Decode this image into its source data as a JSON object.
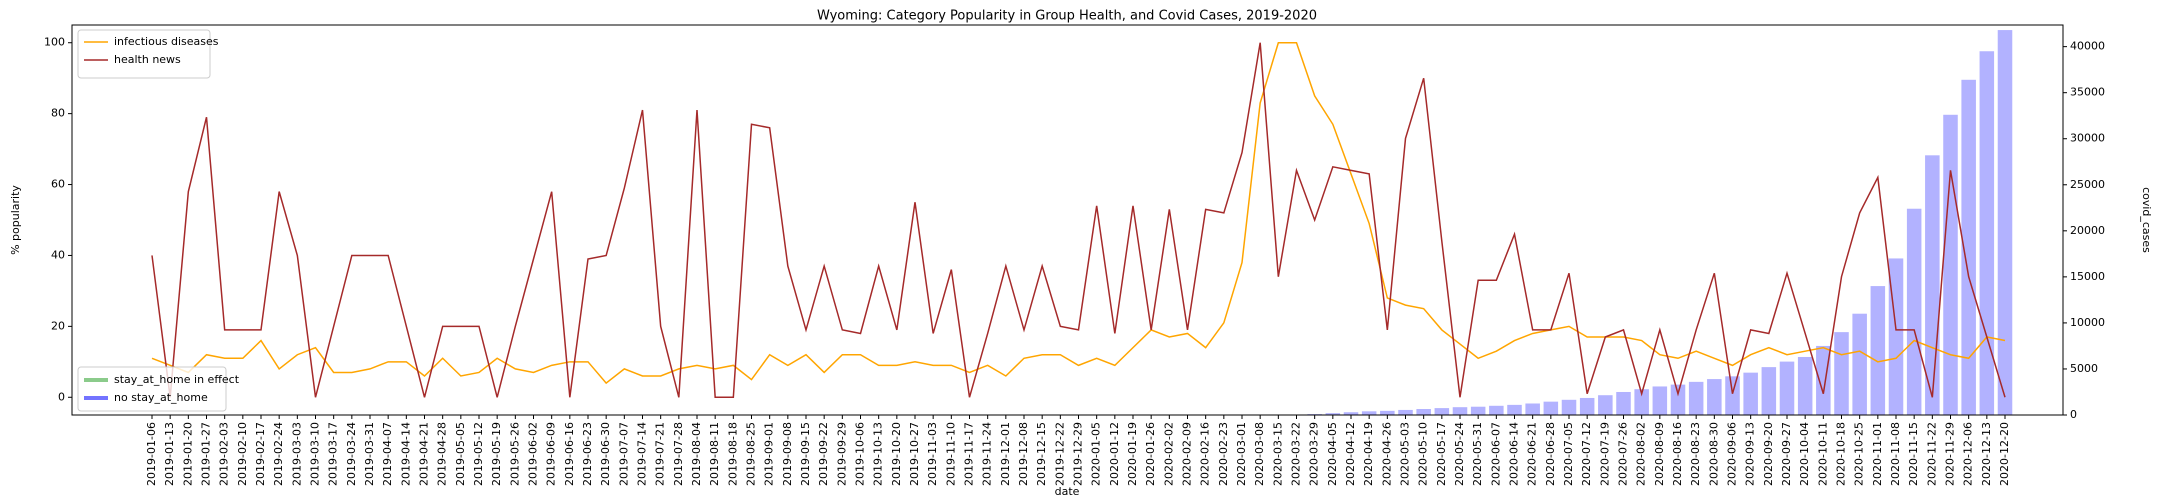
{
  "chart_data": {
    "type": "line_bar",
    "title": "Wyoming: Category Popularity in Group Health, and Covid Cases, 2019-2020",
    "xlabel": "date",
    "ylabel": "% popularity",
    "y2label": "covid_cases",
    "categories": [
      "2019-01-06",
      "2019-01-13",
      "2019-01-20",
      "2019-01-27",
      "2019-02-03",
      "2019-02-10",
      "2019-02-17",
      "2019-02-24",
      "2019-03-03",
      "2019-03-10",
      "2019-03-17",
      "2019-03-24",
      "2019-03-31",
      "2019-04-07",
      "2019-04-14",
      "2019-04-21",
      "2019-04-28",
      "2019-05-05",
      "2019-05-12",
      "2019-05-19",
      "2019-05-26",
      "2019-06-02",
      "2019-06-09",
      "2019-06-16",
      "2019-06-23",
      "2019-06-30",
      "2019-07-07",
      "2019-07-14",
      "2019-07-21",
      "2019-07-28",
      "2019-08-04",
      "2019-08-11",
      "2019-08-18",
      "2019-08-25",
      "2019-09-01",
      "2019-09-08",
      "2019-09-15",
      "2019-09-22",
      "2019-09-29",
      "2019-10-06",
      "2019-10-13",
      "2019-10-20",
      "2019-10-27",
      "2019-11-03",
      "2019-11-10",
      "2019-11-17",
      "2019-11-24",
      "2019-12-01",
      "2019-12-08",
      "2019-12-15",
      "2019-12-22",
      "2019-12-29",
      "2020-01-05",
      "2020-01-12",
      "2020-01-19",
      "2020-01-26",
      "2020-02-02",
      "2020-02-09",
      "2020-02-16",
      "2020-02-23",
      "2020-03-01",
      "2020-03-08",
      "2020-03-15",
      "2020-03-22",
      "2020-03-29",
      "2020-04-05",
      "2020-04-12",
      "2020-04-19",
      "2020-04-26",
      "2020-05-03",
      "2020-05-10",
      "2020-05-17",
      "2020-05-24",
      "2020-05-31",
      "2020-06-07",
      "2020-06-14",
      "2020-06-21",
      "2020-06-28",
      "2020-07-05",
      "2020-07-12",
      "2020-07-19",
      "2020-07-26",
      "2020-08-02",
      "2020-08-09",
      "2020-08-16",
      "2020-08-23",
      "2020-08-30",
      "2020-09-06",
      "2020-09-13",
      "2020-09-20",
      "2020-09-27",
      "2020-10-04",
      "2020-10-11",
      "2020-10-18",
      "2020-10-25",
      "2020-11-01",
      "2020-11-08",
      "2020-11-15",
      "2020-11-22",
      "2020-11-29",
      "2020-12-06",
      "2020-12-13",
      "2020-12-20"
    ],
    "series": [
      {
        "name": "infectious diseases",
        "color": "#ffa500",
        "values": [
          11,
          9,
          7,
          12,
          11,
          11,
          16,
          8,
          12,
          14,
          7,
          7,
          8,
          10,
          10,
          6,
          11,
          6,
          7,
          11,
          8,
          7,
          9,
          10,
          10,
          4,
          8,
          6,
          6,
          8,
          9,
          8,
          9,
          5,
          12,
          9,
          12,
          7,
          12,
          12,
          9,
          9,
          10,
          9,
          9,
          7,
          9,
          6,
          11,
          12,
          12,
          9,
          11,
          9,
          14,
          19,
          17,
          18,
          14,
          21,
          38,
          83,
          100,
          100,
          85,
          77,
          63,
          49,
          28,
          26,
          25,
          19,
          15,
          11,
          13,
          16,
          18,
          19,
          20,
          17,
          17,
          17,
          16,
          12,
          11,
          13,
          11,
          9,
          12,
          14,
          12,
          13,
          14,
          12,
          13,
          10,
          11,
          16,
          14,
          12,
          11,
          17,
          16
        ]
      },
      {
        "name": "health news",
        "color": "#a52a2a",
        "values": [
          40,
          0,
          58,
          79,
          19,
          19,
          19,
          58,
          40,
          0,
          20,
          40,
          40,
          40,
          20,
          0,
          20,
          20,
          20,
          0,
          20,
          39,
          58,
          0,
          39,
          40,
          59,
          81,
          20,
          0,
          81,
          0,
          0,
          77,
          76,
          37,
          19,
          37,
          19,
          18,
          37,
          19,
          55,
          18,
          36,
          0,
          18,
          37,
          19,
          37,
          20,
          19,
          54,
          18,
          54,
          19,
          53,
          19,
          53,
          52,
          69,
          100,
          34,
          64,
          50,
          65,
          64,
          63,
          19,
          73,
          90,
          44,
          0,
          33,
          33,
          46,
          19,
          19,
          35,
          1,
          17,
          19,
          1,
          19,
          1,
          19,
          35,
          1,
          19,
          18,
          35,
          18,
          1,
          34,
          52,
          62,
          19,
          19,
          0,
          64,
          34,
          17,
          0
        ]
      },
      {
        "axis": "y2",
        "color": "#0000ff",
        "values": [
          null,
          null,
          null,
          null,
          null,
          null,
          null,
          null,
          null,
          null,
          null,
          null,
          null,
          null,
          null,
          null,
          null,
          null,
          null,
          null,
          null,
          null,
          null,
          null,
          null,
          null,
          null,
          null,
          null,
          null,
          null,
          null,
          null,
          null,
          null,
          null,
          null,
          null,
          null,
          null,
          null,
          null,
          null,
          null,
          null,
          null,
          null,
          null,
          null,
          null,
          null,
          null,
          null,
          null,
          null,
          null,
          null,
          null,
          null,
          null,
          null,
          null,
          10,
          40,
          100,
          200,
          300,
          400,
          450,
          550,
          650,
          750,
          850,
          900,
          1000,
          1100,
          1250,
          1450,
          1650,
          1850,
          2150,
          2500,
          2800,
          3100,
          3300,
          3600,
          3900,
          4200,
          4600,
          5200,
          5800,
          6300,
          7500,
          9000,
          11000,
          14000,
          17000,
          22400,
          28200,
          32600,
          36400,
          39500,
          41800
        ]
      }
    ],
    "bar_legend": [
      {
        "name": "stay_at_home in effect",
        "color": "#2ca02c"
      },
      {
        "name": "no stay_at_home",
        "color": "#0000ff"
      }
    ],
    "ylim": [
      -5,
      105
    ],
    "yticks": [
      0,
      20,
      40,
      60,
      80,
      100
    ],
    "y2lim": [
      0,
      42350
    ],
    "y2ticks": [
      0,
      5000,
      10000,
      15000,
      20000,
      25000,
      30000,
      35000,
      40000
    ]
  }
}
